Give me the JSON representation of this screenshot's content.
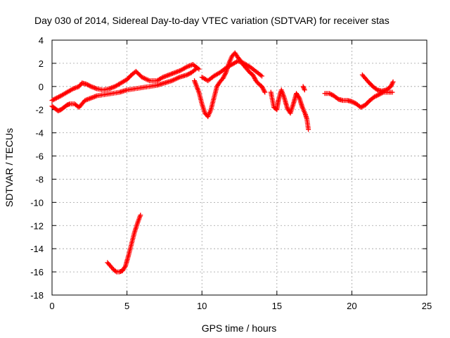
{
  "chart_data": {
    "type": "scatter",
    "title": "Day 030 of 2014, Sidereal Day-to-day VTEC variation (SDTVAR) for receiver stas",
    "xlabel": "GPS time / hours",
    "ylabel": "SDTVAR / TECUs",
    "xlim": [
      0,
      25
    ],
    "ylim": [
      -18,
      4
    ],
    "xticks": [
      0,
      5,
      10,
      15,
      20,
      25
    ],
    "yticks": [
      -18,
      -16,
      -14,
      -12,
      -10,
      -8,
      -6,
      -4,
      -2,
      0,
      2,
      4
    ],
    "xtick_labels": [
      "0",
      "5",
      "10",
      "15",
      "20",
      "25"
    ],
    "ytick_labels": [
      "-18",
      "-16",
      "-14",
      "-12",
      "-10",
      "-8",
      "-6",
      "-4",
      "-2",
      "0",
      "2",
      "4"
    ],
    "grid": true,
    "marker": "plus",
    "color": "#ff0000",
    "series": [
      {
        "name": "main-band-lower",
        "x": [
          0.0,
          0.2,
          0.4,
          0.6,
          0.8,
          1.0,
          1.2,
          1.5,
          1.8,
          2.2,
          2.6,
          3.0,
          3.5,
          4.0,
          4.5,
          5.0,
          5.5,
          6.0,
          6.5,
          7.0,
          7.5,
          8.0,
          8.5,
          9.0,
          9.3,
          9.6
        ],
        "y": [
          -1.7,
          -1.9,
          -2.1,
          -2.0,
          -1.8,
          -1.6,
          -1.5,
          -1.5,
          -1.8,
          -1.2,
          -1.0,
          -0.8,
          -0.7,
          -0.6,
          -0.5,
          -0.3,
          -0.2,
          -0.1,
          0.0,
          0.1,
          0.3,
          0.5,
          0.8,
          1.0,
          1.2,
          1.5
        ]
      },
      {
        "name": "main-band-upper",
        "x": [
          0.0,
          0.3,
          0.6,
          1.0,
          1.4,
          1.8,
          2.0,
          2.3,
          2.6,
          3.0,
          3.4,
          3.8,
          4.2,
          4.6,
          5.0,
          5.3,
          5.6,
          6.0,
          6.5,
          7.0,
          7.4,
          7.8,
          8.2,
          8.6,
          9.0,
          9.4,
          9.8
        ],
        "y": [
          -1.2,
          -1.0,
          -0.8,
          -0.5,
          -0.2,
          0.0,
          0.3,
          0.2,
          0.0,
          -0.2,
          -0.3,
          -0.2,
          0.0,
          0.3,
          0.6,
          1.0,
          1.3,
          0.8,
          0.5,
          0.5,
          0.8,
          1.0,
          1.2,
          1.4,
          1.7,
          1.9,
          1.5
        ]
      },
      {
        "name": "band-to-noon",
        "x": [
          9.5,
          9.8,
          10.0,
          10.2,
          10.4,
          10.6,
          10.8,
          11.0,
          11.2,
          11.4,
          11.6,
          11.8,
          12.0,
          12.2,
          12.4,
          12.6,
          12.8,
          13.0,
          13.2,
          13.4,
          13.6,
          13.8,
          14.0,
          14.2
        ],
        "y": [
          0.5,
          -0.5,
          -1.5,
          -2.3,
          -2.6,
          -2.0,
          -1.0,
          0.0,
          0.4,
          0.7,
          1.2,
          2.0,
          2.6,
          2.9,
          2.5,
          2.2,
          1.8,
          1.5,
          1.2,
          1.0,
          0.5,
          0.2,
          0.0,
          -0.5
        ]
      },
      {
        "name": "band-to-noon-upper",
        "x": [
          10.0,
          10.4,
          10.8,
          11.2,
          11.6,
          12.0,
          12.4,
          12.8,
          13.2,
          13.6,
          14.0
        ],
        "y": [
          0.8,
          0.5,
          0.9,
          1.2,
          1.6,
          1.9,
          2.2,
          2.0,
          1.7,
          1.3,
          0.9
        ]
      },
      {
        "name": "afternoon-scatter",
        "x": [
          14.6,
          14.8,
          15.0,
          15.1,
          15.3,
          15.5,
          15.7,
          15.9,
          16.1,
          16.3,
          16.5,
          16.7,
          16.9,
          17.0,
          17.1
        ],
        "y": [
          -0.5,
          -1.8,
          -2.0,
          -1.2,
          -0.3,
          -1.0,
          -1.9,
          -2.3,
          -1.5,
          -0.6,
          -1.0,
          -1.8,
          -2.4,
          -2.8,
          -3.7
        ]
      },
      {
        "name": "afternoon-isolated",
        "x": [
          16.75,
          16.85
        ],
        "y": [
          0.0,
          -0.3
        ]
      },
      {
        "name": "evening-segment",
        "x": [
          18.2,
          18.5,
          18.8,
          19.1,
          19.4,
          19.7,
          20.0,
          20.3,
          20.6,
          20.9,
          21.2,
          21.5,
          21.8,
          22.1,
          22.4,
          22.7
        ],
        "y": [
          -0.6,
          -0.6,
          -0.8,
          -1.1,
          -1.2,
          -1.2,
          -1.3,
          -1.5,
          -1.8,
          -1.6,
          -1.2,
          -0.9,
          -0.7,
          -0.5,
          -0.5,
          -0.5
        ]
      },
      {
        "name": "evening-upper-v",
        "x": [
          20.7,
          20.9,
          21.1,
          21.4,
          21.7,
          22.0,
          22.3,
          22.6,
          22.75
        ],
        "y": [
          1.0,
          0.7,
          0.4,
          0.0,
          -0.3,
          -0.4,
          -0.3,
          0.0,
          0.4
        ]
      },
      {
        "name": "isolated-arc",
        "x": [
          3.7,
          3.9,
          4.1,
          4.3,
          4.5,
          4.7,
          4.9,
          5.1,
          5.3,
          5.5,
          5.7,
          5.9
        ],
        "y": [
          -15.2,
          -15.5,
          -15.8,
          -16.0,
          -16.0,
          -15.9,
          -15.5,
          -14.6,
          -13.6,
          -12.6,
          -11.8,
          -11.1
        ]
      }
    ]
  }
}
